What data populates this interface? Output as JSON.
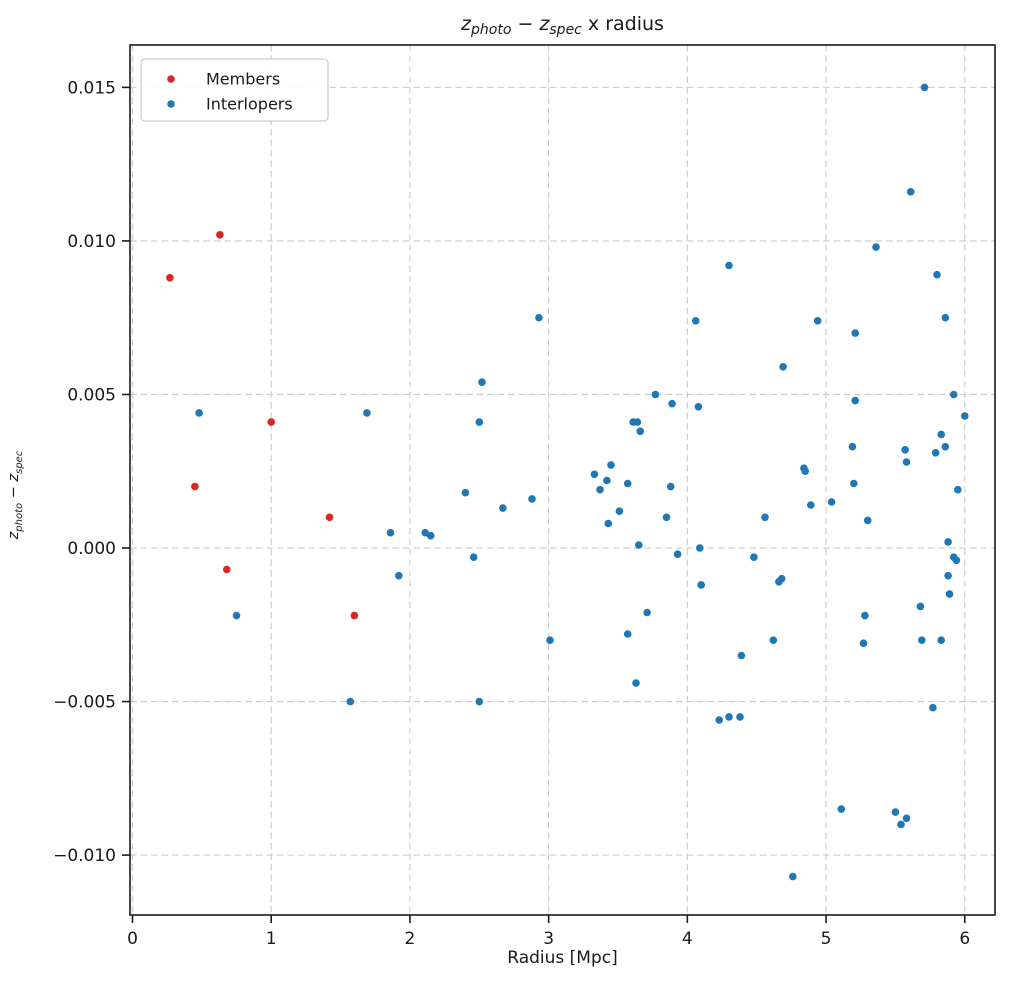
{
  "title": {
    "plain": "z_photo − z_spec x radius",
    "parts": [
      {
        "t": "z",
        "style": "italic"
      },
      {
        "t": "photo",
        "style": "sub"
      },
      {
        "t": " − ",
        "style": "normal"
      },
      {
        "t": "z",
        "style": "italic"
      },
      {
        "t": "spec",
        "style": "sub"
      },
      {
        "t": " x radius",
        "style": "normal"
      }
    ]
  },
  "legend": {
    "items": [
      {
        "label": "Members",
        "color": "#d62728"
      },
      {
        "label": "Interlopers",
        "color": "#1f77b4"
      }
    ]
  },
  "axes": {
    "xtick_labels": [
      "0",
      "1",
      "2",
      "3",
      "4",
      "5",
      "6"
    ],
    "ytick_labels": [
      "−0.010",
      "−0.005",
      "0.000",
      "0.005",
      "0.010",
      "0.015"
    ],
    "xlabel": "Radius [Mpc]",
    "ylabel_parts": [
      {
        "t": "z",
        "style": "italic"
      },
      {
        "t": "photo",
        "style": "sub"
      },
      {
        "t": " − ",
        "style": "normal"
      },
      {
        "t": "z",
        "style": "italic"
      },
      {
        "t": "spec",
        "style": "sub"
      }
    ]
  },
  "colors": {
    "members": "#d62728",
    "interlopers": "#1f77b4",
    "grid": "#c9c9c9",
    "spine": "#1a1a1a",
    "legend_border": "#cccccc"
  },
  "chart_data": {
    "type": "scatter",
    "title": "z_photo - z_spec x radius",
    "xlabel": "Radius [Mpc]",
    "ylabel": "z_photo - z_spec",
    "xlim": [
      -0.018,
      6.218
    ],
    "ylim": [
      -0.01195,
      0.01638
    ],
    "xticks": [
      0,
      1,
      2,
      3,
      4,
      5,
      6
    ],
    "yticks": [
      -0.01,
      -0.005,
      0.0,
      0.005,
      0.01,
      0.015
    ],
    "grid": true,
    "grid_style": "dashed",
    "legend_position": "upper left",
    "marker_radius_px": 3.8,
    "series": [
      {
        "name": "Members",
        "color": "#d62728",
        "points": [
          [
            0.27,
            0.0088
          ],
          [
            0.45,
            0.002
          ],
          [
            0.63,
            0.0102
          ],
          [
            0.68,
            -0.0007
          ],
          [
            1.0,
            0.0041
          ],
          [
            1.42,
            0.001
          ],
          [
            1.6,
            -0.0022
          ]
        ]
      },
      {
        "name": "Interlopers",
        "color": "#1f77b4",
        "points": [
          [
            0.48,
            0.0044
          ],
          [
            0.75,
            -0.0022
          ],
          [
            1.57,
            -0.005
          ],
          [
            1.69,
            0.0044
          ],
          [
            1.86,
            0.0005
          ],
          [
            1.92,
            -0.0009
          ],
          [
            2.11,
            0.0005
          ],
          [
            2.15,
            0.0004
          ],
          [
            2.4,
            0.0018
          ],
          [
            2.46,
            -0.0003
          ],
          [
            2.5,
            0.0041
          ],
          [
            2.5,
            -0.005
          ],
          [
            2.52,
            0.0054
          ],
          [
            2.67,
            0.0013
          ],
          [
            2.88,
            0.0016
          ],
          [
            2.93,
            0.0075
          ],
          [
            3.01,
            -0.003
          ],
          [
            3.33,
            0.0024
          ],
          [
            3.37,
            0.0019
          ],
          [
            3.42,
            0.0022
          ],
          [
            3.43,
            0.0008
          ],
          [
            3.45,
            0.0027
          ],
          [
            3.51,
            0.0012
          ],
          [
            3.57,
            0.0021
          ],
          [
            3.57,
            -0.0028
          ],
          [
            3.61,
            0.0041
          ],
          [
            3.63,
            -0.0044
          ],
          [
            3.64,
            0.0041
          ],
          [
            3.65,
            0.0001
          ],
          [
            3.66,
            0.0038
          ],
          [
            3.71,
            -0.0021
          ],
          [
            3.77,
            0.005
          ],
          [
            3.85,
            0.001
          ],
          [
            3.88,
            0.002
          ],
          [
            3.89,
            0.0047
          ],
          [
            3.93,
            -0.0002
          ],
          [
            4.06,
            0.0074
          ],
          [
            4.08,
            0.0046
          ],
          [
            4.09,
            0.0
          ],
          [
            4.1,
            -0.0012
          ],
          [
            4.23,
            -0.0056
          ],
          [
            4.3,
            0.0092
          ],
          [
            4.3,
            -0.0055
          ],
          [
            4.38,
            -0.0055
          ],
          [
            4.39,
            -0.0035
          ],
          [
            4.48,
            -0.0003
          ],
          [
            4.56,
            0.001
          ],
          [
            4.62,
            -0.003
          ],
          [
            4.66,
            -0.0011
          ],
          [
            4.68,
            -0.001
          ],
          [
            4.69,
            0.0059
          ],
          [
            4.76,
            -0.0107
          ],
          [
            4.84,
            0.0026
          ],
          [
            4.85,
            0.0025
          ],
          [
            4.89,
            0.0014
          ],
          [
            4.94,
            0.0074
          ],
          [
            5.04,
            0.0015
          ],
          [
            5.11,
            -0.0085
          ],
          [
            5.19,
            0.0033
          ],
          [
            5.2,
            0.0021
          ],
          [
            5.21,
            0.007
          ],
          [
            5.21,
            0.0048
          ],
          [
            5.27,
            -0.0031
          ],
          [
            5.28,
            -0.0022
          ],
          [
            5.3,
            0.0009
          ],
          [
            5.36,
            0.0098
          ],
          [
            5.5,
            -0.0086
          ],
          [
            5.54,
            -0.009
          ],
          [
            5.57,
            0.0032
          ],
          [
            5.58,
            0.0028
          ],
          [
            5.58,
            -0.0088
          ],
          [
            5.61,
            0.0116
          ],
          [
            5.68,
            -0.0019
          ],
          [
            5.69,
            -0.003
          ],
          [
            5.71,
            0.015
          ],
          [
            5.77,
            -0.0052
          ],
          [
            5.79,
            0.0031
          ],
          [
            5.8,
            0.0089
          ],
          [
            5.83,
            0.0037
          ],
          [
            5.83,
            -0.003
          ],
          [
            5.86,
            0.0033
          ],
          [
            5.86,
            0.0075
          ],
          [
            5.88,
            0.0002
          ],
          [
            5.88,
            -0.0009
          ],
          [
            5.89,
            -0.0015
          ],
          [
            5.92,
            0.005
          ],
          [
            5.92,
            -0.0003
          ],
          [
            5.94,
            -0.0004
          ],
          [
            5.95,
            0.0019
          ],
          [
            6.0,
            0.0043
          ]
        ]
      }
    ]
  }
}
